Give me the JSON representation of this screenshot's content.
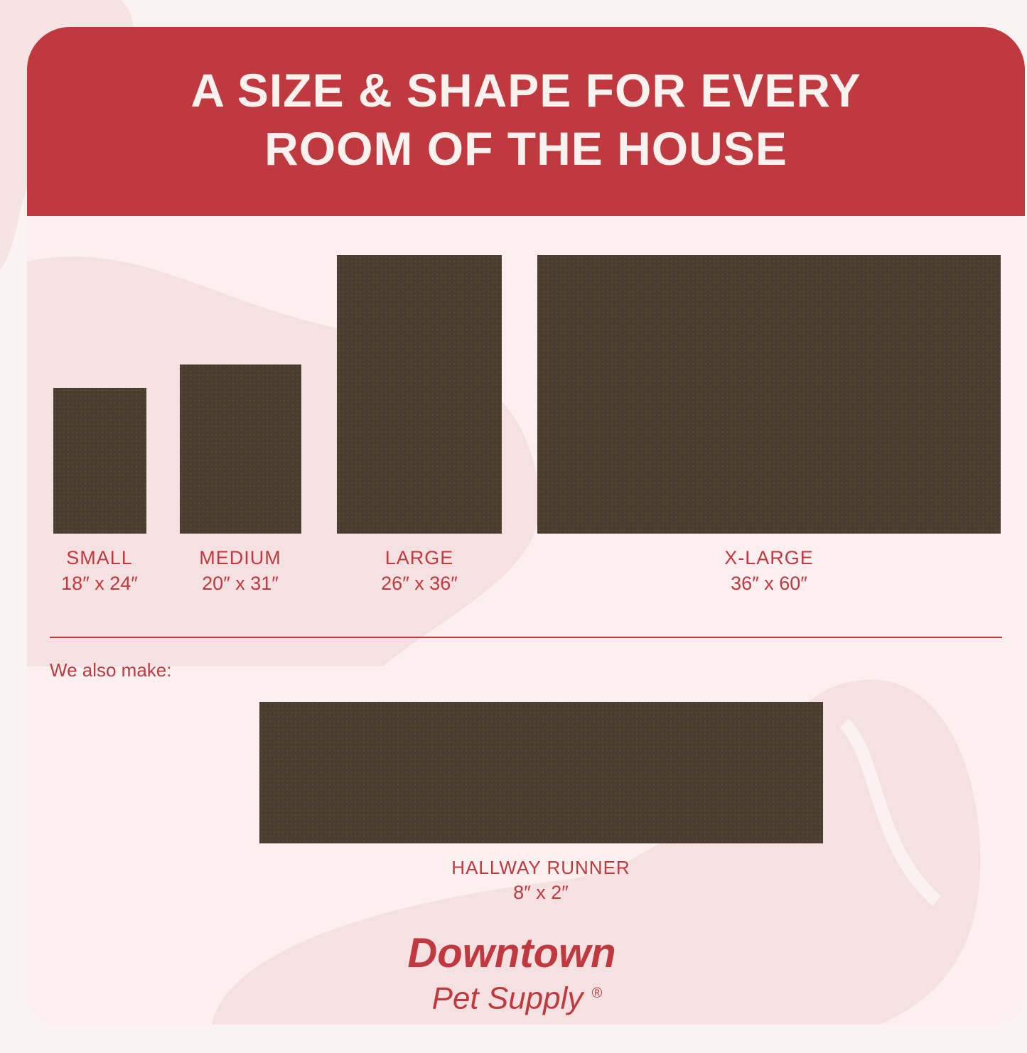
{
  "title_line1": "A SIZE & SHAPE FOR EVERY",
  "title_line2": "ROOM OF THE HOUSE",
  "sizes": [
    {
      "name": "SMALL",
      "dimensions": "18″ x 24″"
    },
    {
      "name": "MEDIUM",
      "dimensions": "20″ x 31″"
    },
    {
      "name": "LARGE",
      "dimensions": "26″ x 36″"
    },
    {
      "name": "X-LARGE",
      "dimensions": "36″ x 60″"
    }
  ],
  "also_make_label": "We also make:",
  "runner": {
    "name": "HALLWAY RUNNER",
    "dimensions": "8″ x 2″"
  },
  "brand": {
    "line1": "Downtown",
    "line2": "Pet Supply",
    "registered": "®"
  },
  "colors": {
    "accent": "#c0393e",
    "mat": "#4a3d2f",
    "background": "#fbefef"
  }
}
